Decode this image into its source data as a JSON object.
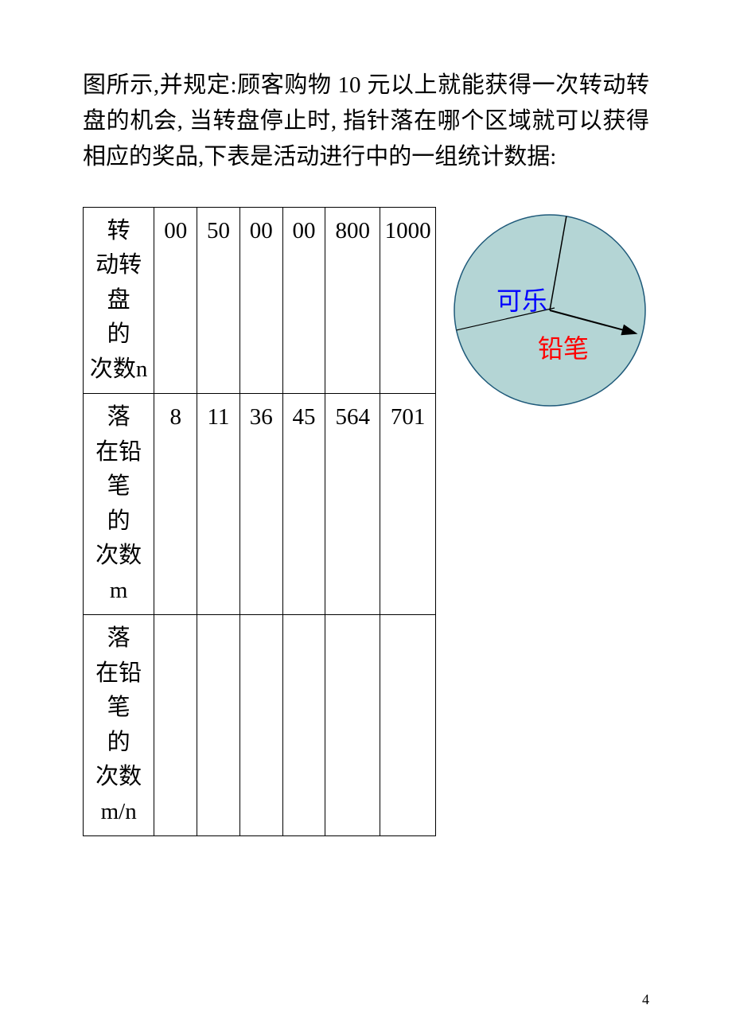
{
  "paragraph": "图所示,并规定:顾客购物 10 元以上就能获得一次转动转盘的机会, 当转盘停止时, 指针落在哪个区域就可以获得相应的奖品,下表是活动进行中的一组统计数据:",
  "table": {
    "rows": [
      {
        "label_lines": [
          "转",
          "动转盘",
          "的",
          "次数n"
        ],
        "cells": [
          "00",
          "50",
          "00",
          "00",
          "800",
          "1000"
        ]
      },
      {
        "label_lines": [
          "落",
          "在铅笔",
          "的",
          "次数 m"
        ],
        "cells": [
          "8",
          "11",
          "36",
          "45",
          "564",
          "701"
        ]
      },
      {
        "label_lines": [
          "落",
          "在铅笔",
          "的",
          "次数",
          "m/n"
        ],
        "cells": [
          "",
          "",
          "",
          "",
          "",
          ""
        ]
      }
    ],
    "border_color": "#000000",
    "font_size": 29
  },
  "wheel": {
    "fill_color": "#b4d5d5",
    "stroke_color": "#1f5a7a",
    "divider_color": "#000000",
    "arrow_color": "#000000",
    "label_cola": "可乐",
    "label_cola_color": "#0000ff",
    "label_pencil": "铅笔",
    "label_pencil_color": "#ff0000",
    "radius": 120,
    "divider1_angle_deg": -80,
    "divider2_angle_start": 190,
    "arrow_angle_deg": 15
  },
  "page_number": "4"
}
